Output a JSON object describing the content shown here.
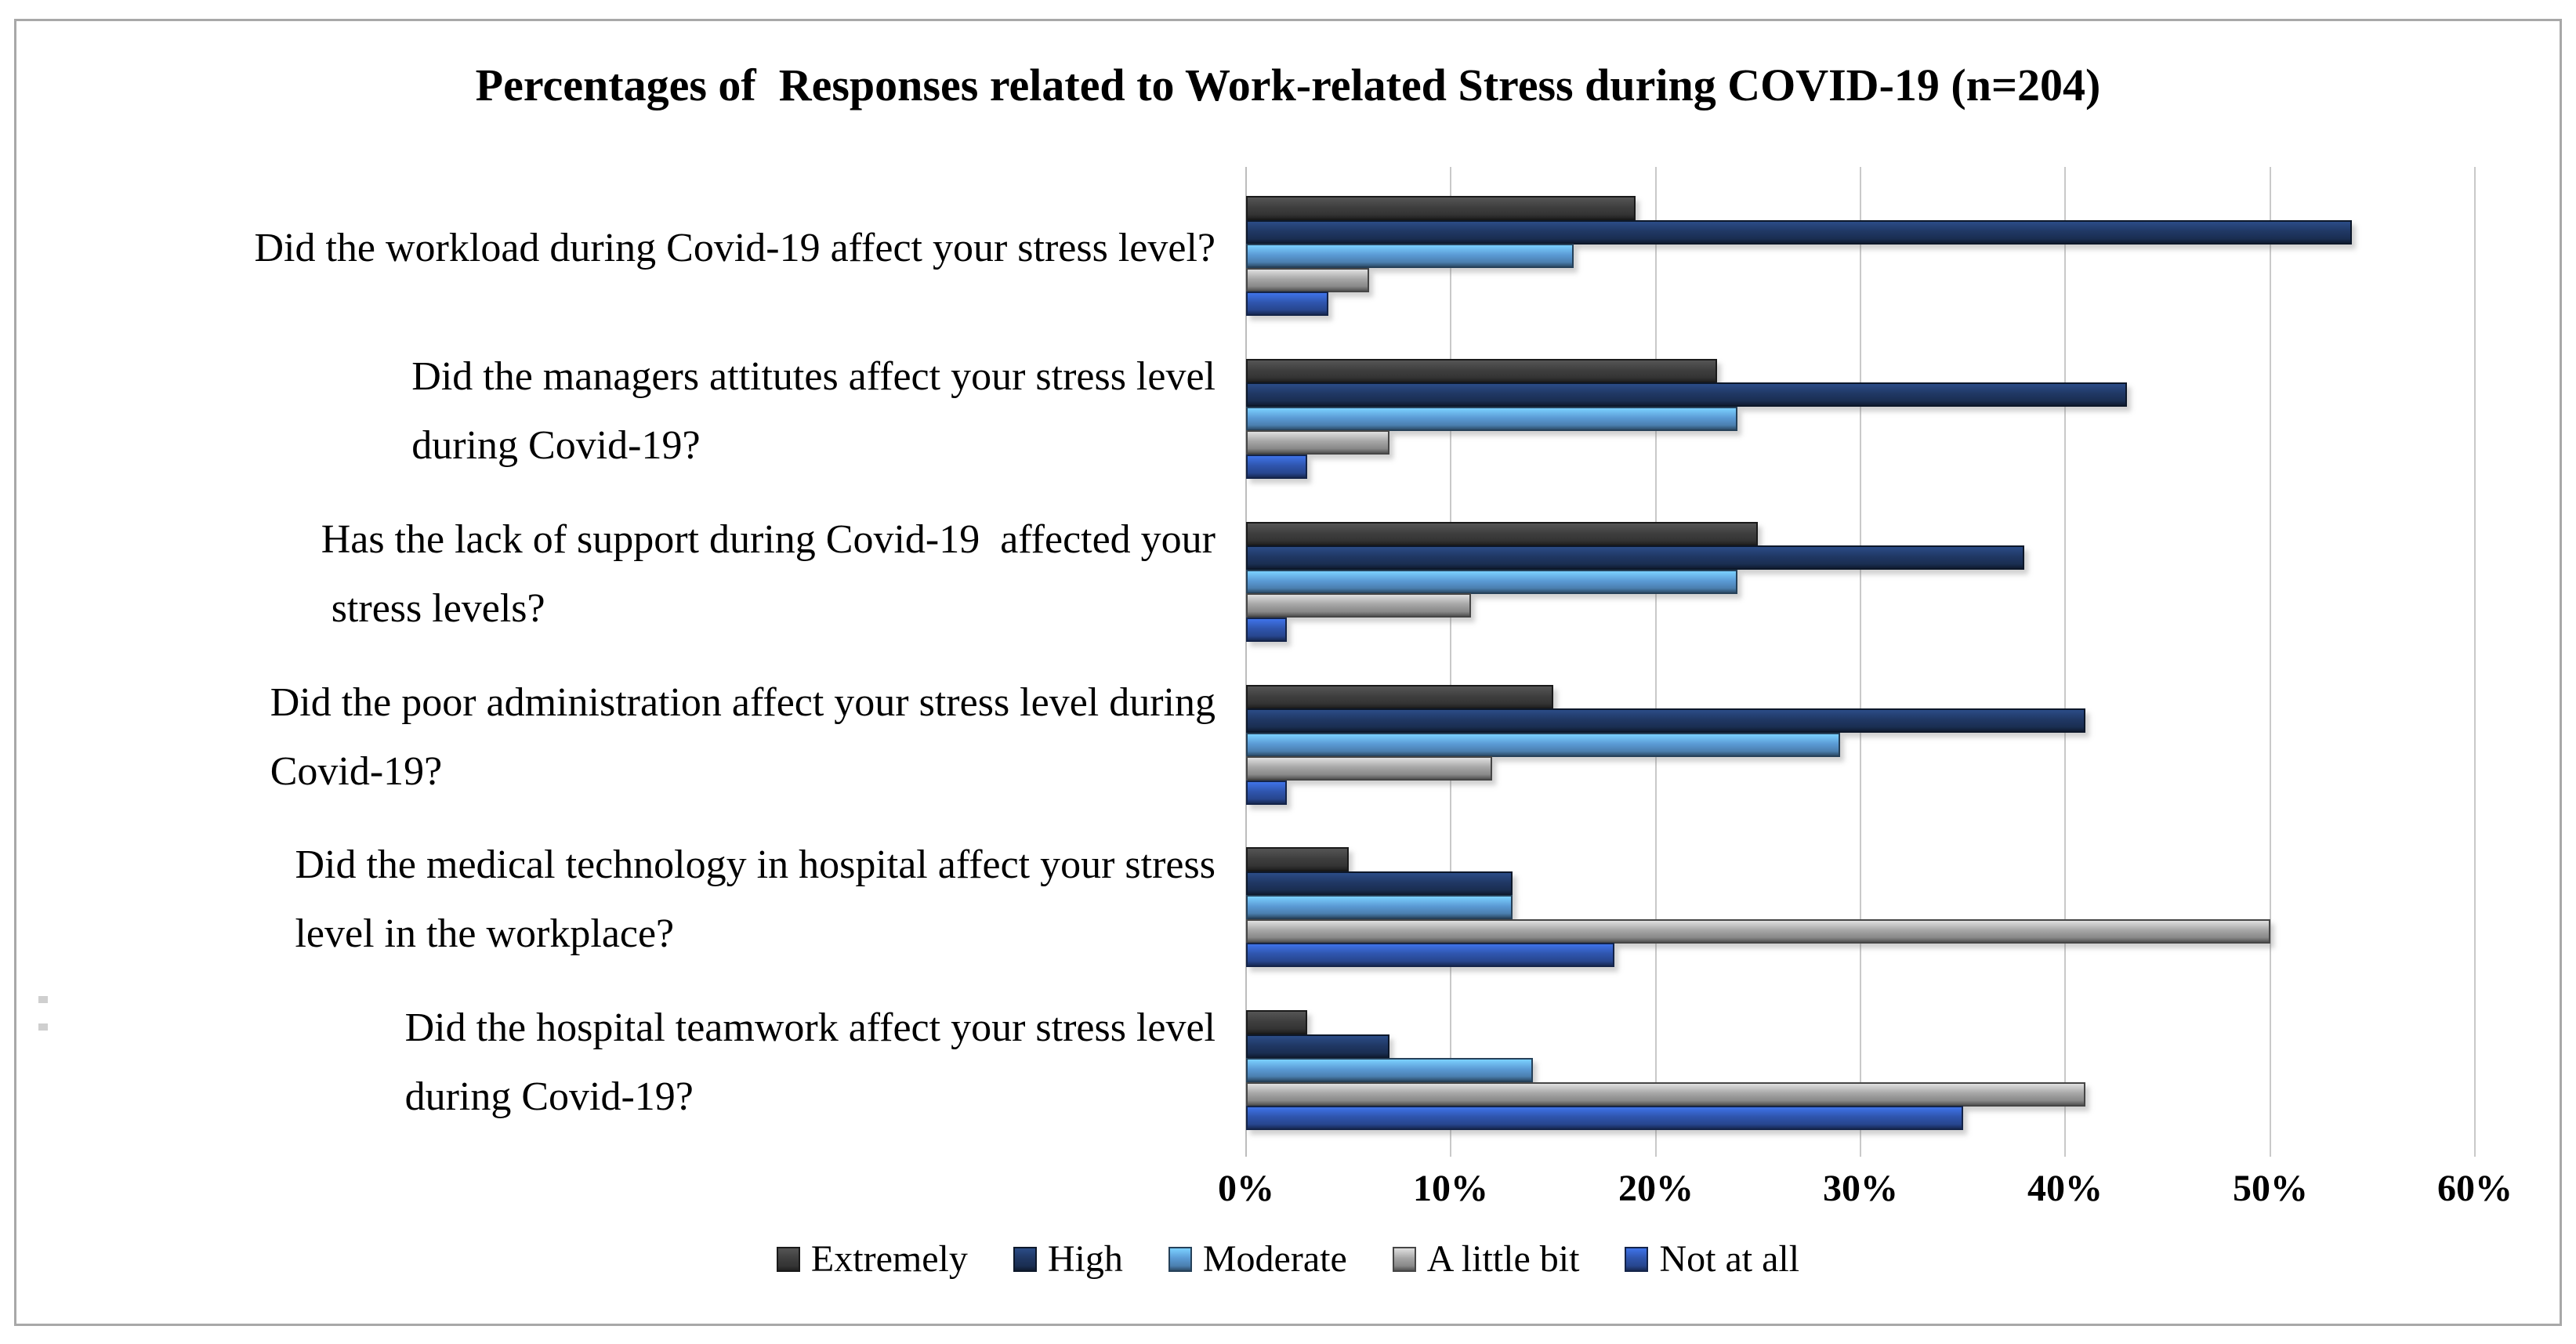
{
  "title": "Percentages of  Responses related to Work-related Stress during COVID-19 (n=204)",
  "chart_data": {
    "type": "bar",
    "orientation": "horizontal",
    "title": "Percentages of  Responses related to Work-related Stress during COVID-19 (n=204)",
    "categories": [
      [
        "Did the workload during Covid-19 affect your stress level?"
      ],
      [
        "Did the managers attitutes affect your stress level",
        "during Covid-19?"
      ],
      [
        "Has the lack of support during Covid-19  affected your",
        " stress levels?"
      ],
      [
        "Did the poor administration affect your stress level during",
        "Covid-19?"
      ],
      [
        "Did the medical technology in hospital affect your stress",
        "level in the workplace?"
      ],
      [
        "Did the hospital teamwork affect your stress level",
        "during Covid-19?"
      ]
    ],
    "series": [
      {
        "name": "Extremely",
        "color": "#3f3f3f",
        "values": [
          19,
          23,
          25,
          15,
          5,
          3
        ]
      },
      {
        "name": "High",
        "color": "#203864",
        "values": [
          54,
          43,
          38,
          41,
          13,
          7
        ]
      },
      {
        "name": "Moderate",
        "color": "#5b9bd5",
        "values": [
          16,
          24,
          24,
          29,
          13,
          14
        ]
      },
      {
        "name": "A little bit",
        "color": "#a6a6a6",
        "values": [
          6,
          7,
          11,
          12,
          50,
          41
        ]
      },
      {
        "name": "Not at all",
        "color": "#2f55ad",
        "values": [
          4,
          3,
          2,
          2,
          18,
          35
        ]
      }
    ],
    "x_ticks": [
      "0%",
      "10%",
      "20%",
      "30%",
      "40%",
      "50%",
      "60%"
    ],
    "xlim": [
      0,
      60
    ],
    "xlabel": "",
    "ylabel": "",
    "grid": "vertical",
    "legend_position": "bottom",
    "grid_color": "#c9c9c9",
    "frame_border_color": "#a8a8a8",
    "background_color": "#ffffff",
    "text_color": "#000000"
  }
}
